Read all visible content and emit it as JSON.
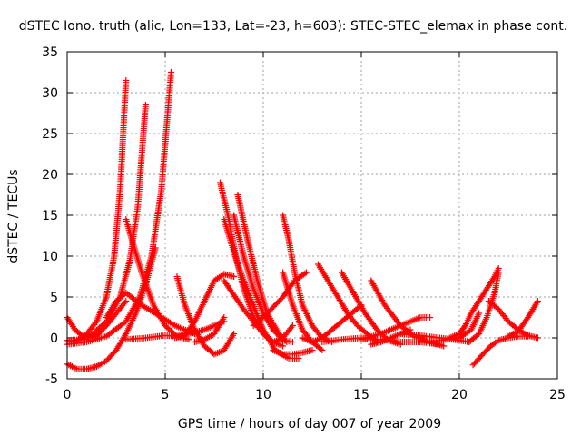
{
  "chart_data": {
    "type": "scatter",
    "title": "dSTEC Iono. truth (alic, Lon=133, Lat=-23, h=603): STEC-STEC_elemax in phase cont.",
    "xlabel": "GPS time / hours of day 007 of year 2009",
    "ylabel": "dSTEC  / TECUs",
    "xlim": [
      0,
      25
    ],
    "ylim": [
      -5,
      35
    ],
    "xticks": [
      0,
      5,
      10,
      15,
      20,
      25
    ],
    "yticks": [
      -5,
      0,
      5,
      10,
      15,
      20,
      25,
      30,
      35
    ],
    "grid": true,
    "marker": "+",
    "color": "#ff0000",
    "series": [
      {
        "x": [
          0.0,
          0.5,
          1.0,
          1.5,
          2.0,
          2.4,
          2.7,
          3.0
        ],
        "y": [
          -0.5,
          -0.3,
          0.5,
          2.0,
          5.0,
          10.0,
          18.0,
          31.5
        ]
      },
      {
        "x": [
          0.0,
          0.7,
          1.3,
          2.0,
          2.7,
          3.2,
          3.6,
          4.0
        ],
        "y": [
          -0.3,
          -0.2,
          0.5,
          2.0,
          5.0,
          9.5,
          16.0,
          28.5
        ]
      },
      {
        "x": [
          0.0,
          1.0,
          2.0,
          3.0,
          3.7,
          4.3,
          4.8,
          5.3
        ],
        "y": [
          -0.8,
          -0.5,
          0.2,
          2.0,
          5.0,
          10.0,
          18.0,
          32.5
        ]
      },
      {
        "x": [
          0.0,
          0.5,
          1.0,
          1.5,
          2.0,
          2.5,
          3.0,
          3.5,
          4.0,
          4.5
        ],
        "y": [
          -3.2,
          -3.8,
          -3.8,
          -3.5,
          -2.8,
          -1.5,
          0.5,
          3.0,
          6.5,
          11.0
        ]
      },
      {
        "x": [
          0.0,
          0.4,
          0.8,
          1.2,
          1.6,
          2.0,
          2.5,
          3.0
        ],
        "y": [
          2.5,
          1.0,
          0.2,
          0.0,
          0.5,
          1.5,
          3.0,
          4.5
        ]
      },
      {
        "x": [
          3.0,
          3.3,
          3.8,
          4.4,
          5.0,
          5.6,
          6.2
        ],
        "y": [
          14.5,
          12.0,
          8.0,
          4.0,
          1.5,
          0.2,
          -0.2
        ]
      },
      {
        "x": [
          2.0,
          2.5,
          3.0,
          3.8,
          4.5,
          5.5,
          6.5
        ],
        "y": [
          2.5,
          4.5,
          5.5,
          4.0,
          3.0,
          1.5,
          0.5
        ]
      },
      {
        "x": [
          3.0,
          4.0,
          5.0,
          5.5,
          6.2,
          7.0,
          8.0
        ],
        "y": [
          -0.2,
          0.0,
          0.3,
          0.2,
          0.5,
          1.0,
          2.0
        ]
      },
      {
        "x": [
          5.6,
          6.0,
          6.5,
          7.0,
          7.5,
          8.0,
          8.5
        ],
        "y": [
          7.5,
          4.0,
          1.0,
          -1.0,
          -2.0,
          -1.5,
          0.5
        ]
      },
      {
        "x": [
          5.5,
          6.0,
          6.5,
          7.0,
          7.5,
          8.0,
          8.5
        ],
        "y": [
          0.0,
          0.3,
          2.0,
          4.5,
          7.0,
          7.8,
          7.5
        ]
      },
      {
        "x": [
          6.5,
          7.0,
          7.5,
          8.0
        ],
        "y": [
          -0.5,
          -0.2,
          0.5,
          2.5
        ]
      },
      {
        "x": [
          7.8,
          8.2,
          8.6,
          9.0,
          9.5,
          10.0,
          10.5,
          11.0
        ],
        "y": [
          19.0,
          15.0,
          10.0,
          6.0,
          2.5,
          0.5,
          -0.5,
          -1.0
        ]
      },
      {
        "x": [
          8.5,
          9.0,
          9.5,
          10.0,
          10.5,
          11.0,
          11.5
        ],
        "y": [
          15.0,
          10.0,
          6.0,
          3.0,
          1.0,
          -0.3,
          -0.5
        ]
      },
      {
        "x": [
          8.7,
          9.2,
          9.7,
          10.2,
          10.8,
          11.2
        ],
        "y": [
          17.5,
          12.0,
          7.0,
          3.0,
          0.5,
          -0.5
        ]
      },
      {
        "x": [
          8.0,
          8.7,
          9.4,
          10.0,
          10.6,
          11.3,
          11.8
        ],
        "y": [
          14.5,
          9.0,
          4.5,
          1.0,
          -1.5,
          -2.5,
          -2.5
        ]
      },
      {
        "x": [
          8.0,
          9.0,
          10.0,
          10.5,
          11.0,
          11.5
        ],
        "y": [
          7.0,
          3.5,
          0.5,
          -0.5,
          0.0,
          1.5
        ]
      },
      {
        "x": [
          9.5,
          10.2,
          11.0,
          11.6,
          12.2
        ],
        "y": [
          1.5,
          3.0,
          5.0,
          7.0,
          8.0
        ]
      },
      {
        "x": [
          11.0,
          11.3,
          11.6,
          12.0,
          12.5,
          13.0,
          13.5
        ],
        "y": [
          15.0,
          12.0,
          8.0,
          4.0,
          1.5,
          0.0,
          -0.5
        ]
      },
      {
        "x": [
          11.0,
          11.5,
          12.0,
          12.5,
          13.0
        ],
        "y": [
          8.0,
          4.0,
          1.0,
          -0.5,
          -1.5
        ]
      },
      {
        "x": [
          10.5,
          11.0,
          11.5,
          12.0,
          12.5
        ],
        "y": [
          -1.5,
          -2.0,
          -2.0,
          -1.8,
          -1.5
        ]
      },
      {
        "x": [
          12.0,
          12.5,
          13.0,
          13.5,
          14.0,
          14.5,
          15.0
        ],
        "y": [
          0.0,
          -0.5,
          0.0,
          1.0,
          2.0,
          3.0,
          4.0
        ]
      },
      {
        "x": [
          12.8,
          13.3,
          13.8,
          14.3,
          14.8,
          15.3,
          15.8
        ],
        "y": [
          9.0,
          7.0,
          5.0,
          3.0,
          1.5,
          0.5,
          -0.5
        ]
      },
      {
        "x": [
          14.0,
          14.6,
          15.2,
          15.8,
          16.4,
          17.0
        ],
        "y": [
          8.0,
          5.5,
          3.0,
          1.0,
          -0.3,
          -0.8
        ]
      },
      {
        "x": [
          15.5,
          16.2,
          17.0,
          17.7,
          18.5,
          19.2
        ],
        "y": [
          7.0,
          4.0,
          1.5,
          0.2,
          -0.5,
          -1.0
        ]
      },
      {
        "x": [
          13.0,
          14.0,
          15.0,
          16.0,
          17.0,
          18.0,
          19.0
        ],
        "y": [
          -0.5,
          -0.2,
          0.0,
          -0.2,
          -0.5,
          -0.5,
          -0.8
        ]
      },
      {
        "x": [
          15.0,
          16.0,
          17.0,
          18.0,
          18.5
        ],
        "y": [
          -0.2,
          0.5,
          1.5,
          2.5,
          2.5
        ]
      },
      {
        "x": [
          15.5,
          16.0,
          16.5,
          17.0,
          17.5
        ],
        "y": [
          -0.8,
          -0.5,
          0.0,
          0.5,
          1.0
        ]
      },
      {
        "x": [
          17.0,
          18.0,
          19.0,
          20.0,
          20.5
        ],
        "y": [
          0.5,
          0.3,
          0.0,
          -0.3,
          -0.5
        ]
      },
      {
        "x": [
          18.0,
          19.0,
          20.0,
          20.6,
          21.0
        ],
        "y": [
          -0.5,
          -0.3,
          0.0,
          1.0,
          3.0
        ]
      },
      {
        "x": [
          19.5,
          20.0,
          20.3,
          20.6,
          21.0,
          21.4,
          21.8,
          22.0
        ],
        "y": [
          0.0,
          0.5,
          1.5,
          3.0,
          4.5,
          6.0,
          7.5,
          8.5
        ]
      },
      {
        "x": [
          20.5,
          21.0,
          21.4,
          21.8,
          22.0
        ],
        "y": [
          -0.5,
          0.5,
          2.5,
          5.5,
          8.0
        ]
      },
      {
        "x": [
          20.7,
          21.2,
          21.6,
          22.0,
          22.5,
          23.0,
          23.5
        ],
        "y": [
          -3.3,
          -2.0,
          -1.0,
          -0.3,
          0.0,
          0.2,
          0.2
        ]
      },
      {
        "x": [
          21.5,
          22.0,
          22.5,
          23.0,
          23.5,
          24.0
        ],
        "y": [
          4.5,
          3.5,
          2.0,
          1.0,
          0.3,
          0.0
        ]
      },
      {
        "x": [
          22.5,
          23.0,
          23.5,
          24.0
        ],
        "y": [
          0.2,
          0.8,
          2.5,
          4.5
        ]
      }
    ]
  }
}
